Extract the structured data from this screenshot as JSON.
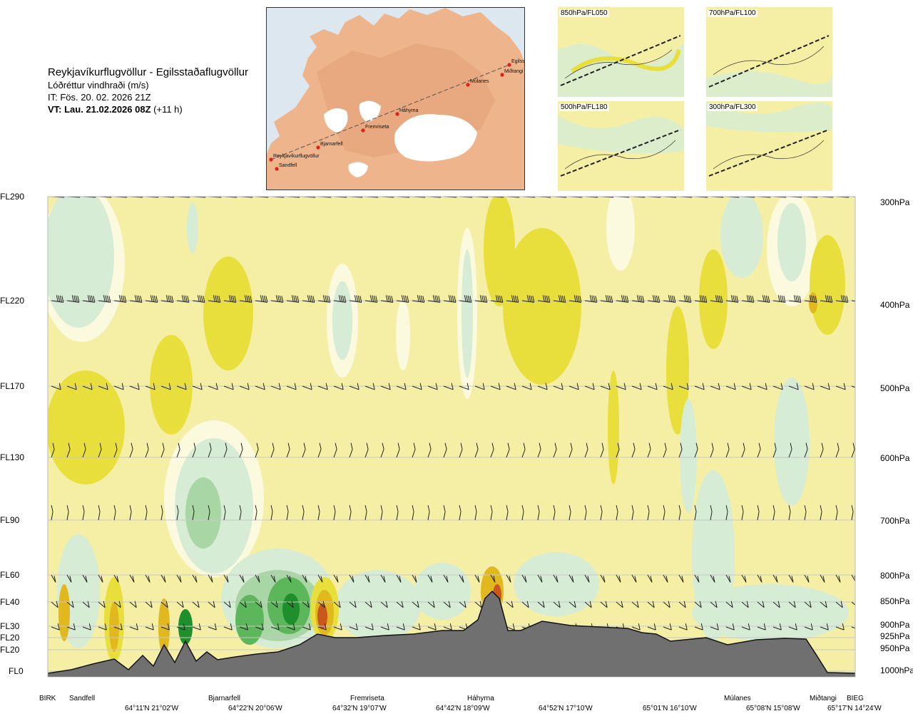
{
  "header": {
    "title": "Reykjavíkurflugvöllur - Egilsstaðaflugvöllur",
    "subtitle": "Lóðréttur vindhraði (m/s)",
    "issue_time": "IT: Fös. 20. 02. 2026 21Z",
    "valid_time_bold": "VT: Lau. 21.02.2026 08Z",
    "valid_time_offset": " (+11 h)"
  },
  "map": {
    "points": [
      {
        "name": "Reykjavíkurflugvöllur"
      },
      {
        "name": "Sandfell"
      },
      {
        "name": "Bjarnarfell"
      },
      {
        "name": "Fremriseta"
      },
      {
        "name": "Háhyrna"
      },
      {
        "name": "Múlanes"
      },
      {
        "name": "Miðtangi"
      },
      {
        "name": "Egilsst"
      }
    ]
  },
  "insets": [
    {
      "label": "850hPa/FL050"
    },
    {
      "label": "700hPa/FL100"
    },
    {
      "label": "500hPa/FL180"
    },
    {
      "label": "300hPa/FL300"
    }
  ],
  "chart_data": {
    "type": "heatmap",
    "title": "Lóðréttur vindhraði (m/s)",
    "y_left_levels": [
      {
        "label": "FL290",
        "hpa": "300hPa"
      },
      {
        "label": "FL220",
        "hpa": "400hPa"
      },
      {
        "label": "FL170",
        "hpa": "500hPa"
      },
      {
        "label": "FL130",
        "hpa": "600hPa"
      },
      {
        "label": "FL90",
        "hpa": "700hPa"
      },
      {
        "label": "FL60",
        "hpa": "800hPa"
      },
      {
        "label": "FL40",
        "hpa": "850hPa"
      },
      {
        "label": "FL30",
        "hpa": "900hPa"
      },
      {
        "label": "FL20",
        "hpa": "925hPa"
      },
      {
        "label": "FL20",
        "hpa": "950hPa"
      },
      {
        "label": "FL0",
        "hpa": "1000hPa"
      }
    ],
    "x_locations": [
      "BIRK",
      "Sandfell",
      "Bjarnarfell",
      "Fremriseta",
      "Háhyrna",
      "Múlanes",
      "Miðtangi",
      "BIEG"
    ],
    "x_coordinates": [
      "64°11'N 21°02'W",
      "64°22'N 20°06'W",
      "64°32'N 19°07'W",
      "64°42'N 18°09'W",
      "64°52'N 17°10'W",
      "65°01'N 16°10'W",
      "65°08'N 15°08'W",
      "65°17'N 14°24'W"
    ],
    "colors": {
      "background": "#f5eea5",
      "weak_up": "#e9df3c",
      "up": "#e2b81f",
      "strong_up": "#c8581c",
      "weak_down": "#d6ecd4",
      "down": "#a9d6a5",
      "strong_down": "#1f8f2c",
      "very_weak": "#fbfadf",
      "terrain": "#707070"
    }
  }
}
